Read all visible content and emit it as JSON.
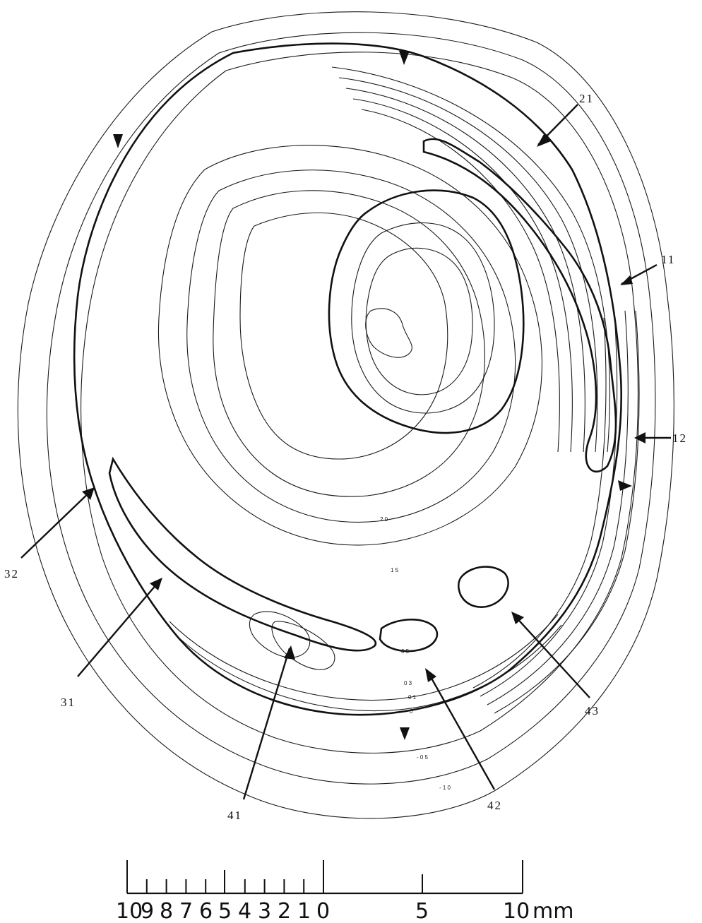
{
  "callouts": {
    "label_11": "11",
    "label_12": "12",
    "label_21": "21",
    "label_31": "31",
    "label_32": "32",
    "label_41": "41",
    "label_42": "42",
    "label_43": "43"
  },
  "contour_labels": {
    "c_20": "2 0",
    "c_15": "1 5",
    "c_neg05": "- 0 5",
    "c_neg10": "- 1 0",
    "c_05": "0 5",
    "c_03": "0 3",
    "c_01": "0 1",
    "c_0": "0"
  },
  "scale": {
    "left_ticks": [
      "10",
      "9",
      "8",
      "7",
      "6",
      "5",
      "4",
      "3",
      "2",
      "1",
      "0"
    ],
    "mid": "5",
    "end": "10",
    "unit": "mm"
  }
}
